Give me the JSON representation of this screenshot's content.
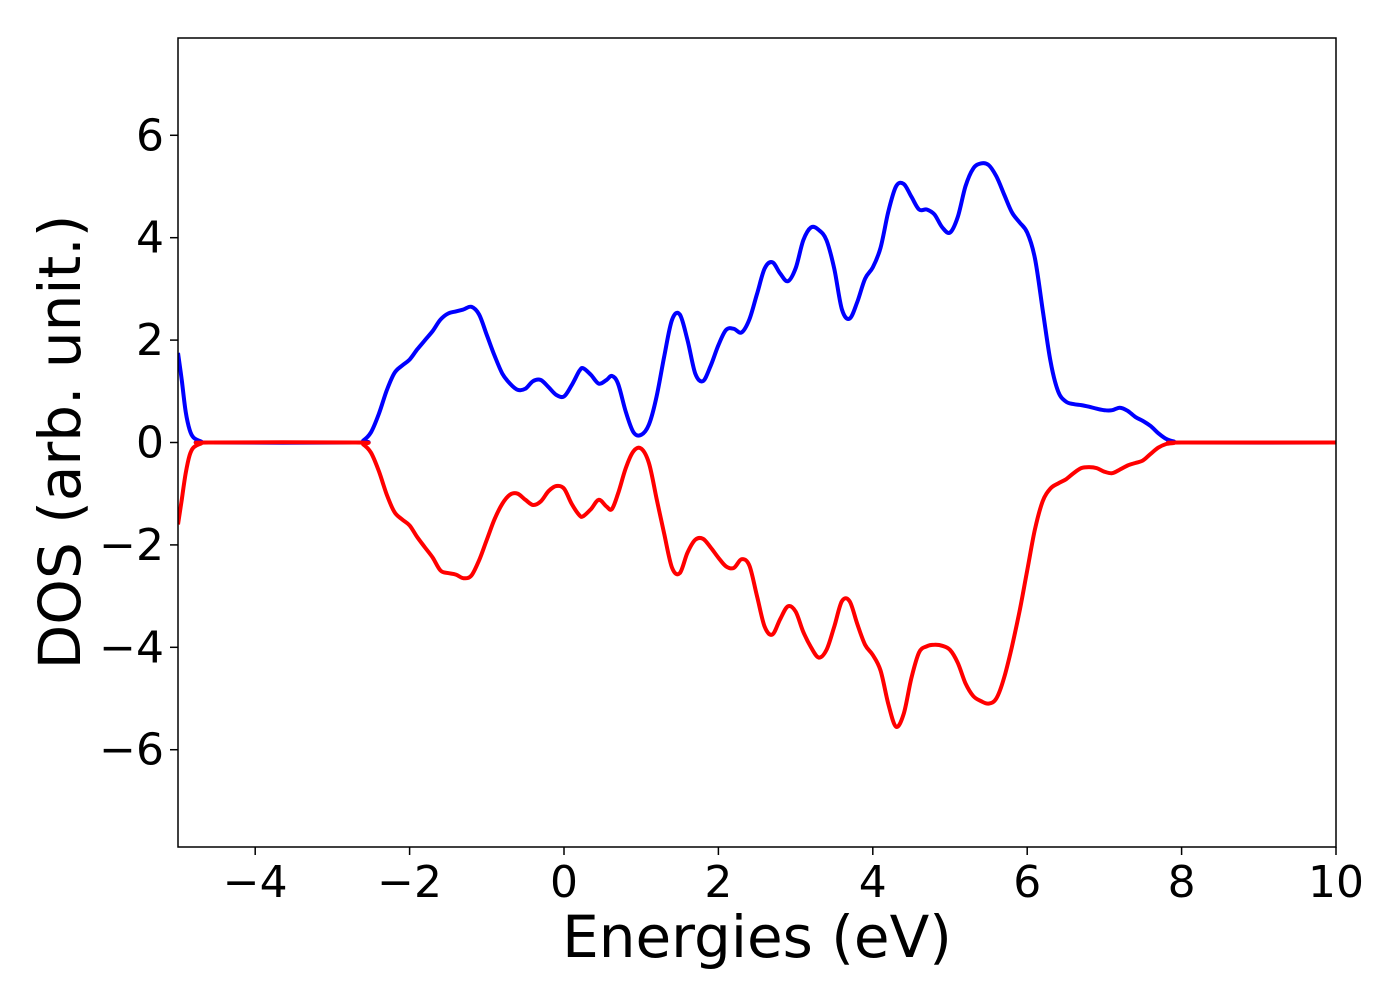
{
  "chart_data": {
    "type": "line",
    "title": "",
    "xlabel": "Energies (eV)",
    "ylabel": "DOS (arb. unit.)",
    "xlim": [
      -5,
      10
    ],
    "ylim": [
      -7.9,
      7.9
    ],
    "grid": false,
    "legend": "none",
    "x_ticks": [
      -4,
      -2,
      0,
      2,
      4,
      6,
      8,
      10
    ],
    "x_tick_labels": [
      "−4",
      "−2",
      "0",
      "2",
      "4",
      "6",
      "8",
      "10"
    ],
    "y_ticks": [
      6,
      4,
      2,
      0,
      -2,
      -4,
      -6
    ],
    "y_tick_labels": [
      "6",
      "4",
      "2",
      "0",
      "−2",
      "−4",
      "−6"
    ],
    "series": [
      {
        "color": "#0000ff",
        "points": [
          [
            -5.0,
            1.75
          ],
          [
            -4.95,
            1.2
          ],
          [
            -4.9,
            0.6
          ],
          [
            -4.85,
            0.25
          ],
          [
            -4.8,
            0.1
          ],
          [
            -4.7,
            0.02
          ],
          [
            -4.6,
            0.0
          ],
          [
            -2.7,
            0.0
          ],
          [
            -2.6,
            0.04
          ],
          [
            -2.5,
            0.2
          ],
          [
            -2.4,
            0.55
          ],
          [
            -2.3,
            1.0
          ],
          [
            -2.2,
            1.35
          ],
          [
            -2.1,
            1.5
          ],
          [
            -2.0,
            1.62
          ],
          [
            -1.9,
            1.82
          ],
          [
            -1.8,
            2.0
          ],
          [
            -1.7,
            2.18
          ],
          [
            -1.6,
            2.4
          ],
          [
            -1.5,
            2.52
          ],
          [
            -1.4,
            2.56
          ],
          [
            -1.3,
            2.6
          ],
          [
            -1.2,
            2.65
          ],
          [
            -1.1,
            2.5
          ],
          [
            -1.0,
            2.1
          ],
          [
            -0.9,
            1.7
          ],
          [
            -0.8,
            1.35
          ],
          [
            -0.7,
            1.15
          ],
          [
            -0.6,
            1.03
          ],
          [
            -0.5,
            1.05
          ],
          [
            -0.4,
            1.2
          ],
          [
            -0.3,
            1.22
          ],
          [
            -0.2,
            1.08
          ],
          [
            -0.1,
            0.93
          ],
          [
            0.0,
            0.9
          ],
          [
            0.1,
            1.12
          ],
          [
            0.2,
            1.4
          ],
          [
            0.25,
            1.45
          ],
          [
            0.35,
            1.32
          ],
          [
            0.45,
            1.15
          ],
          [
            0.55,
            1.22
          ],
          [
            0.62,
            1.3
          ],
          [
            0.7,
            1.15
          ],
          [
            0.8,
            0.6
          ],
          [
            0.9,
            0.2
          ],
          [
            1.0,
            0.15
          ],
          [
            1.1,
            0.35
          ],
          [
            1.2,
            0.9
          ],
          [
            1.3,
            1.7
          ],
          [
            1.4,
            2.4
          ],
          [
            1.5,
            2.5
          ],
          [
            1.6,
            2.0
          ],
          [
            1.7,
            1.35
          ],
          [
            1.8,
            1.2
          ],
          [
            1.9,
            1.5
          ],
          [
            2.0,
            1.9
          ],
          [
            2.1,
            2.2
          ],
          [
            2.2,
            2.22
          ],
          [
            2.3,
            2.15
          ],
          [
            2.4,
            2.4
          ],
          [
            2.5,
            2.9
          ],
          [
            2.6,
            3.4
          ],
          [
            2.7,
            3.52
          ],
          [
            2.8,
            3.3
          ],
          [
            2.9,
            3.15
          ],
          [
            3.0,
            3.4
          ],
          [
            3.1,
            3.95
          ],
          [
            3.2,
            4.2
          ],
          [
            3.3,
            4.15
          ],
          [
            3.4,
            3.95
          ],
          [
            3.5,
            3.4
          ],
          [
            3.6,
            2.6
          ],
          [
            3.7,
            2.42
          ],
          [
            3.8,
            2.75
          ],
          [
            3.9,
            3.2
          ],
          [
            4.0,
            3.42
          ],
          [
            4.1,
            3.8
          ],
          [
            4.2,
            4.5
          ],
          [
            4.3,
            5.0
          ],
          [
            4.4,
            5.05
          ],
          [
            4.5,
            4.8
          ],
          [
            4.6,
            4.55
          ],
          [
            4.7,
            4.55
          ],
          [
            4.8,
            4.45
          ],
          [
            4.9,
            4.2
          ],
          [
            5.0,
            4.1
          ],
          [
            5.1,
            4.4
          ],
          [
            5.2,
            5.0
          ],
          [
            5.3,
            5.35
          ],
          [
            5.4,
            5.45
          ],
          [
            5.5,
            5.42
          ],
          [
            5.6,
            5.2
          ],
          [
            5.7,
            4.85
          ],
          [
            5.8,
            4.5
          ],
          [
            5.9,
            4.3
          ],
          [
            6.0,
            4.1
          ],
          [
            6.1,
            3.6
          ],
          [
            6.2,
            2.6
          ],
          [
            6.3,
            1.6
          ],
          [
            6.4,
            1.0
          ],
          [
            6.5,
            0.8
          ],
          [
            6.6,
            0.75
          ],
          [
            6.7,
            0.73
          ],
          [
            6.8,
            0.7
          ],
          [
            6.9,
            0.66
          ],
          [
            7.0,
            0.63
          ],
          [
            7.1,
            0.63
          ],
          [
            7.2,
            0.68
          ],
          [
            7.3,
            0.62
          ],
          [
            7.4,
            0.5
          ],
          [
            7.5,
            0.42
          ],
          [
            7.6,
            0.32
          ],
          [
            7.7,
            0.18
          ],
          [
            7.8,
            0.07
          ],
          [
            7.9,
            0.02
          ],
          [
            8.0,
            0.0
          ],
          [
            10.0,
            0.0
          ]
        ]
      },
      {
        "color": "#ff0000",
        "points": [
          [
            -5.0,
            -1.6
          ],
          [
            -4.95,
            -1.1
          ],
          [
            -4.9,
            -0.6
          ],
          [
            -4.85,
            -0.25
          ],
          [
            -4.8,
            -0.1
          ],
          [
            -4.7,
            -0.02
          ],
          [
            -4.6,
            0.0
          ],
          [
            -2.7,
            0.0
          ],
          [
            -2.6,
            -0.04
          ],
          [
            -2.5,
            -0.2
          ],
          [
            -2.4,
            -0.55
          ],
          [
            -2.3,
            -1.0
          ],
          [
            -2.2,
            -1.35
          ],
          [
            -2.1,
            -1.5
          ],
          [
            -2.0,
            -1.62
          ],
          [
            -1.9,
            -1.85
          ],
          [
            -1.8,
            -2.05
          ],
          [
            -1.7,
            -2.25
          ],
          [
            -1.6,
            -2.5
          ],
          [
            -1.5,
            -2.55
          ],
          [
            -1.4,
            -2.58
          ],
          [
            -1.3,
            -2.65
          ],
          [
            -1.2,
            -2.6
          ],
          [
            -1.1,
            -2.3
          ],
          [
            -1.0,
            -1.9
          ],
          [
            -0.9,
            -1.5
          ],
          [
            -0.8,
            -1.2
          ],
          [
            -0.7,
            -1.02
          ],
          [
            -0.6,
            -1.0
          ],
          [
            -0.5,
            -1.12
          ],
          [
            -0.4,
            -1.22
          ],
          [
            -0.3,
            -1.15
          ],
          [
            -0.2,
            -0.95
          ],
          [
            -0.1,
            -0.85
          ],
          [
            0.0,
            -0.9
          ],
          [
            0.1,
            -1.2
          ],
          [
            0.2,
            -1.42
          ],
          [
            0.25,
            -1.44
          ],
          [
            0.35,
            -1.3
          ],
          [
            0.45,
            -1.12
          ],
          [
            0.55,
            -1.25
          ],
          [
            0.62,
            -1.3
          ],
          [
            0.7,
            -1.0
          ],
          [
            0.8,
            -0.5
          ],
          [
            0.9,
            -0.17
          ],
          [
            1.0,
            -0.12
          ],
          [
            1.1,
            -0.4
          ],
          [
            1.2,
            -1.1
          ],
          [
            1.3,
            -1.8
          ],
          [
            1.4,
            -2.45
          ],
          [
            1.5,
            -2.55
          ],
          [
            1.6,
            -2.15
          ],
          [
            1.7,
            -1.9
          ],
          [
            1.8,
            -1.88
          ],
          [
            1.9,
            -2.05
          ],
          [
            2.0,
            -2.25
          ],
          [
            2.1,
            -2.42
          ],
          [
            2.2,
            -2.45
          ],
          [
            2.3,
            -2.28
          ],
          [
            2.4,
            -2.4
          ],
          [
            2.5,
            -3.0
          ],
          [
            2.6,
            -3.6
          ],
          [
            2.7,
            -3.75
          ],
          [
            2.8,
            -3.45
          ],
          [
            2.9,
            -3.2
          ],
          [
            3.0,
            -3.3
          ],
          [
            3.1,
            -3.7
          ],
          [
            3.2,
            -4.0
          ],
          [
            3.3,
            -4.2
          ],
          [
            3.4,
            -4.05
          ],
          [
            3.5,
            -3.6
          ],
          [
            3.6,
            -3.1
          ],
          [
            3.7,
            -3.1
          ],
          [
            3.8,
            -3.55
          ],
          [
            3.9,
            -3.95
          ],
          [
            4.0,
            -4.15
          ],
          [
            4.1,
            -4.45
          ],
          [
            4.2,
            -5.1
          ],
          [
            4.3,
            -5.55
          ],
          [
            4.4,
            -5.3
          ],
          [
            4.5,
            -4.6
          ],
          [
            4.6,
            -4.1
          ],
          [
            4.7,
            -3.98
          ],
          [
            4.8,
            -3.95
          ],
          [
            4.9,
            -3.97
          ],
          [
            5.0,
            -4.05
          ],
          [
            5.1,
            -4.3
          ],
          [
            5.2,
            -4.7
          ],
          [
            5.3,
            -4.95
          ],
          [
            5.4,
            -5.05
          ],
          [
            5.5,
            -5.1
          ],
          [
            5.6,
            -5.0
          ],
          [
            5.7,
            -4.6
          ],
          [
            5.8,
            -4.0
          ],
          [
            5.9,
            -3.3
          ],
          [
            6.0,
            -2.5
          ],
          [
            6.1,
            -1.7
          ],
          [
            6.2,
            -1.15
          ],
          [
            6.3,
            -0.9
          ],
          [
            6.4,
            -0.8
          ],
          [
            6.5,
            -0.72
          ],
          [
            6.6,
            -0.6
          ],
          [
            6.7,
            -0.5
          ],
          [
            6.8,
            -0.48
          ],
          [
            6.9,
            -0.5
          ],
          [
            7.0,
            -0.57
          ],
          [
            7.1,
            -0.6
          ],
          [
            7.2,
            -0.53
          ],
          [
            7.3,
            -0.45
          ],
          [
            7.4,
            -0.4
          ],
          [
            7.5,
            -0.35
          ],
          [
            7.6,
            -0.22
          ],
          [
            7.7,
            -0.1
          ],
          [
            7.8,
            -0.03
          ],
          [
            7.9,
            -0.01
          ],
          [
            8.0,
            0.0
          ],
          [
            10.0,
            0.0
          ]
        ]
      }
    ]
  }
}
